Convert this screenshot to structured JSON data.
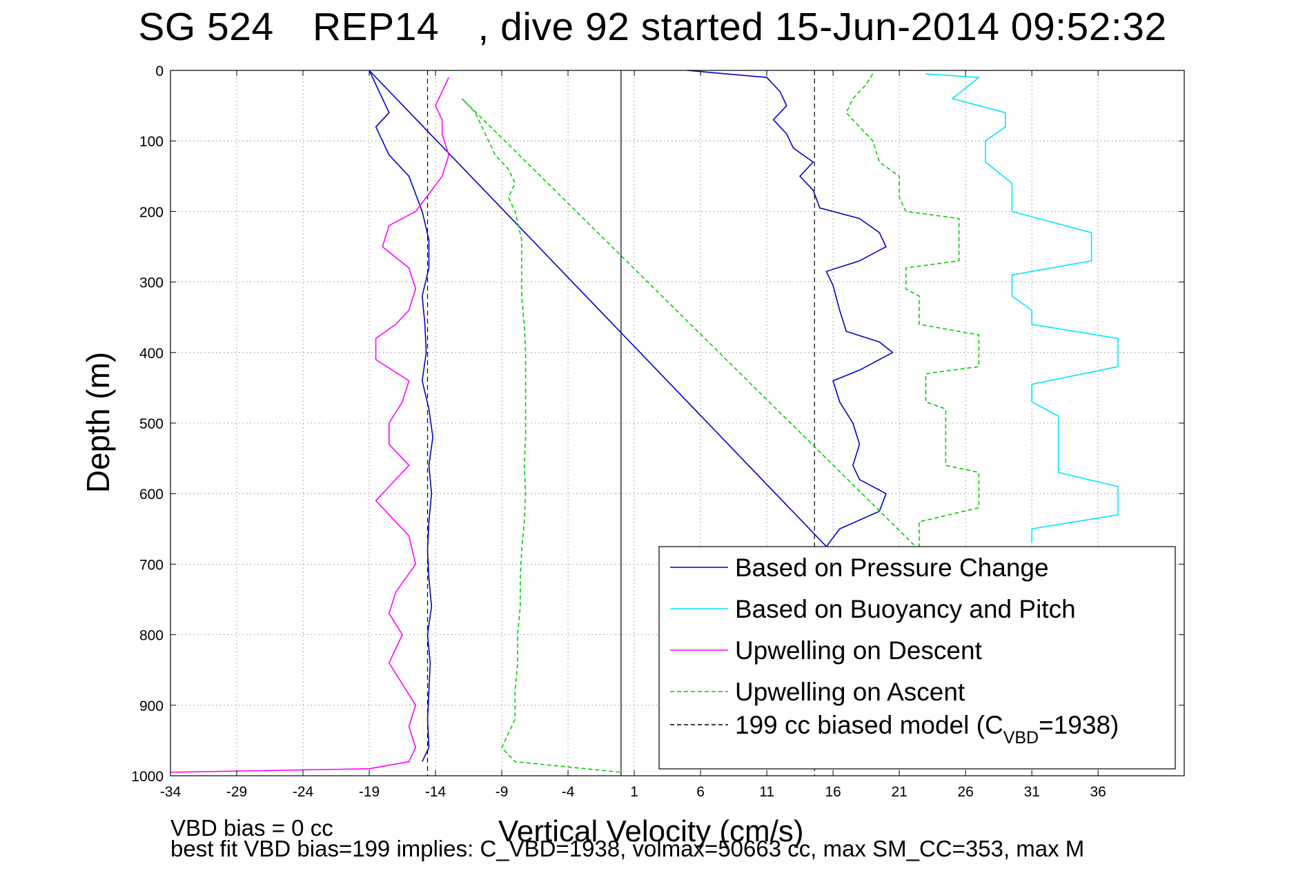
{
  "chart_data": {
    "type": "line",
    "title_parts": [
      "SG 524",
      "REP14",
      ", dive 92 started 15-Jun-2014 09:52:32"
    ],
    "xlabel": "Vertical Velocity (cm/s)",
    "ylabel": "Depth (m)",
    "xlim": [
      -34,
      42.5
    ],
    "ylim": [
      0,
      1000
    ],
    "y_reversed": true,
    "grid": true,
    "x_ticks": [
      -34,
      -29,
      -24,
      -19,
      -14,
      -9,
      -4,
      1,
      6,
      11,
      16,
      21,
      26,
      31,
      36
    ],
    "y_ticks": [
      0,
      100,
      200,
      300,
      400,
      500,
      600,
      700,
      800,
      900,
      1000
    ],
    "legend_position": "bottom-right",
    "legend": [
      {
        "label": "Based on Pressure Change",
        "color": "#0000cc",
        "style": "solid"
      },
      {
        "label": "Based on Buoyancy and Pitch",
        "color": "#00e5ff",
        "style": "solid"
      },
      {
        "label": "Upwelling on Descent",
        "color": "#ff00ff",
        "style": "solid"
      },
      {
        "label": "Upwelling on Ascent",
        "color": "#00cc00",
        "style": "dashed"
      },
      {
        "label_main": "199 cc biased model (C",
        "label_sub": "VBD",
        "label_end": "=1938)",
        "color": "#000000",
        "style": "dashed"
      }
    ],
    "reference_lines": [
      {
        "type": "vertical",
        "x": 0,
        "style": "solid",
        "color": "#000000"
      },
      {
        "type": "vertical",
        "x": -14.6,
        "style": "dashed",
        "color": "#000000"
      },
      {
        "type": "vertical",
        "x": 14.6,
        "style": "dashed",
        "color": "#000000"
      }
    ],
    "series": [
      {
        "name": "Based on Pressure Change",
        "color": "#0000cc",
        "style": "solid",
        "points": [
          [
            5,
            0
          ],
          [
            11,
            10
          ],
          [
            12,
            30
          ],
          [
            12.5,
            50
          ],
          [
            11.5,
            70
          ],
          [
            12.5,
            90
          ],
          [
            13,
            110
          ],
          [
            14.5,
            130
          ],
          [
            13.5,
            150
          ],
          [
            14.5,
            170
          ],
          [
            15,
            195
          ],
          [
            18,
            210
          ],
          [
            19.5,
            230
          ],
          [
            20,
            250
          ],
          [
            18,
            270
          ],
          [
            15.5,
            285
          ],
          [
            16,
            305
          ],
          [
            16.5,
            340
          ],
          [
            17,
            370
          ],
          [
            19.5,
            385
          ],
          [
            20.5,
            400
          ],
          [
            18,
            425
          ],
          [
            16,
            440
          ],
          [
            16.5,
            470
          ],
          [
            17.5,
            500
          ],
          [
            18,
            530
          ],
          [
            17.5,
            560
          ],
          [
            18,
            580
          ],
          [
            20,
            600
          ],
          [
            19.5,
            625
          ],
          [
            16.5,
            650
          ],
          [
            15.5,
            675
          ],
          [
            -19,
            0
          ],
          [
            -18.5,
            20
          ],
          [
            -18,
            40
          ],
          [
            -17.5,
            60
          ],
          [
            -18.5,
            80
          ],
          [
            -18,
            100
          ],
          [
            -17.5,
            120
          ],
          [
            -16,
            150
          ],
          [
            -15.5,
            175
          ],
          [
            -15,
            200
          ],
          [
            -14.5,
            240
          ],
          [
            -14.5,
            280
          ],
          [
            -15,
            320
          ],
          [
            -14.8,
            360
          ],
          [
            -14.7,
            400
          ],
          [
            -15,
            440
          ],
          [
            -14.5,
            480
          ],
          [
            -14.2,
            520
          ],
          [
            -14.5,
            560
          ],
          [
            -14.3,
            600
          ],
          [
            -14.5,
            640
          ],
          [
            -14.6,
            680
          ],
          [
            -14.5,
            720
          ],
          [
            -14.3,
            760
          ],
          [
            -14.6,
            800
          ],
          [
            -14.4,
            840
          ],
          [
            -14.5,
            880
          ],
          [
            -14.6,
            920
          ],
          [
            -14.5,
            960
          ],
          [
            -15,
            980
          ]
        ]
      },
      {
        "name": "Based on Buoyancy and Pitch",
        "color": "#00e5ff",
        "style": "solid",
        "points": [
          [
            23,
            5
          ],
          [
            27,
            10
          ],
          [
            25,
            40
          ],
          [
            29,
            60
          ],
          [
            29,
            80
          ],
          [
            27.5,
            100
          ],
          [
            27.5,
            130
          ],
          [
            29.5,
            160
          ],
          [
            29.5,
            200
          ],
          [
            35.5,
            230
          ],
          [
            35.5,
            270
          ],
          [
            29.5,
            290
          ],
          [
            29.5,
            320
          ],
          [
            31,
            340
          ],
          [
            31,
            360
          ],
          [
            37.5,
            380
          ],
          [
            37.5,
            420
          ],
          [
            31,
            445
          ],
          [
            31,
            470
          ],
          [
            33,
            490
          ],
          [
            33,
            570
          ],
          [
            37.5,
            590
          ],
          [
            37.5,
            630
          ],
          [
            31,
            650
          ],
          [
            31,
            670
          ]
        ]
      },
      {
        "name": "Upwelling on Descent",
        "color": "#ff00ff",
        "style": "solid",
        "points": [
          [
            -13,
            10
          ],
          [
            -13.5,
            30
          ],
          [
            -14,
            50
          ],
          [
            -13.5,
            70
          ],
          [
            -13.5,
            90
          ],
          [
            -13,
            120
          ],
          [
            -13.5,
            150
          ],
          [
            -14.5,
            175
          ],
          [
            -15.5,
            200
          ],
          [
            -17.5,
            220
          ],
          [
            -18,
            250
          ],
          [
            -16,
            280
          ],
          [
            -15.5,
            310
          ],
          [
            -16,
            340
          ],
          [
            -17,
            360
          ],
          [
            -18.5,
            380
          ],
          [
            -18.5,
            410
          ],
          [
            -16,
            440
          ],
          [
            -16.5,
            470
          ],
          [
            -17.5,
            500
          ],
          [
            -17.5,
            530
          ],
          [
            -16,
            560
          ],
          [
            -17.5,
            590
          ],
          [
            -18.5,
            610
          ],
          [
            -17,
            640
          ],
          [
            -16,
            660
          ],
          [
            -15.5,
            700
          ],
          [
            -17,
            740
          ],
          [
            -17.5,
            770
          ],
          [
            -16.5,
            800
          ],
          [
            -17.5,
            840
          ],
          [
            -16.5,
            870
          ],
          [
            -15.5,
            900
          ],
          [
            -16,
            930
          ],
          [
            -15.5,
            960
          ],
          [
            -16,
            980
          ],
          [
            -19,
            990
          ],
          [
            -34,
            995
          ]
        ]
      },
      {
        "name": "Upwelling on Ascent",
        "color": "#00cc00",
        "style": "dashed",
        "points": [
          [
            19,
            5
          ],
          [
            18.5,
            20
          ],
          [
            17.5,
            40
          ],
          [
            17,
            60
          ],
          [
            18,
            80
          ],
          [
            19,
            100
          ],
          [
            19.5,
            130
          ],
          [
            21,
            150
          ],
          [
            21,
            180
          ],
          [
            21.5,
            200
          ],
          [
            25.5,
            210
          ],
          [
            25.5,
            270
          ],
          [
            21.5,
            280
          ],
          [
            21.5,
            310
          ],
          [
            22.5,
            320
          ],
          [
            22.5,
            360
          ],
          [
            27,
            375
          ],
          [
            27,
            420
          ],
          [
            23,
            430
          ],
          [
            23,
            470
          ],
          [
            24.5,
            480
          ],
          [
            24.5,
            560
          ],
          [
            27,
            570
          ],
          [
            27,
            620
          ],
          [
            22.5,
            640
          ],
          [
            22.5,
            680
          ],
          [
            -12,
            40
          ],
          [
            -11,
            60
          ],
          [
            -10.5,
            80
          ],
          [
            -10,
            100
          ],
          [
            -9.5,
            120
          ],
          [
            -8.5,
            140
          ],
          [
            -8,
            160
          ],
          [
            -8.5,
            180
          ],
          [
            -8,
            200
          ],
          [
            -7.5,
            240
          ],
          [
            -7.5,
            280
          ],
          [
            -7.5,
            320
          ],
          [
            -7.3,
            360
          ],
          [
            -7.2,
            400
          ],
          [
            -7.2,
            440
          ],
          [
            -7.2,
            480
          ],
          [
            -7.2,
            520
          ],
          [
            -7.3,
            560
          ],
          [
            -7.2,
            600
          ],
          [
            -7.3,
            640
          ],
          [
            -7.5,
            680
          ],
          [
            -7.6,
            720
          ],
          [
            -7.6,
            760
          ],
          [
            -7.8,
            800
          ],
          [
            -7.8,
            840
          ],
          [
            -8,
            880
          ],
          [
            -8,
            920
          ],
          [
            -9,
            960
          ],
          [
            -8,
            980
          ],
          [
            0,
            995
          ]
        ]
      }
    ]
  },
  "notes": {
    "vbd_bias": "VBD bias = 0 cc",
    "best_fit": "best fit VBD bias=199 implies: C_VBD=1938, volmax=50663 cc, max SM_CC=353, max M"
  }
}
